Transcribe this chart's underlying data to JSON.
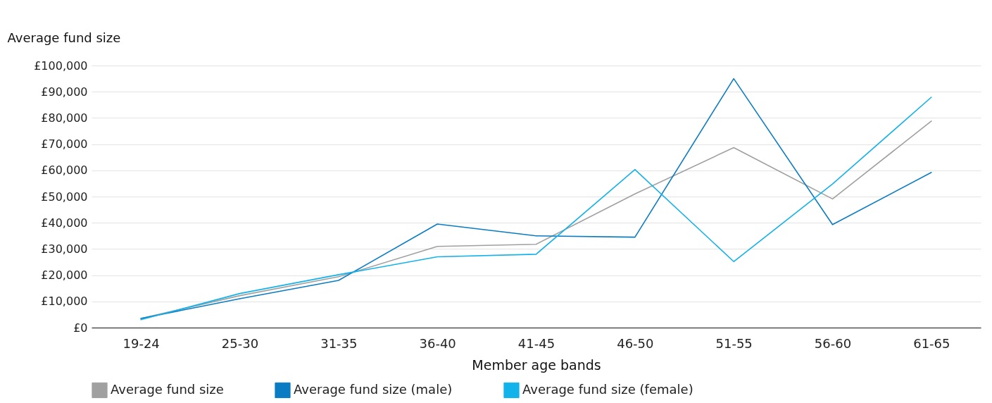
{
  "chart_data": {
    "type": "line",
    "ylabel": "Average fund size",
    "xlabel": "Member age bands",
    "categories": [
      "19-24",
      "25-30",
      "31-35",
      "36-40",
      "41-45",
      "46-50",
      "51-55",
      "56-60",
      "61-65"
    ],
    "series": [
      {
        "name": "Average fund size",
        "color": "#a0a0a0",
        "values": [
          3500,
          12200,
          19400,
          31000,
          31800,
          51000,
          68700,
          49100,
          78800
        ]
      },
      {
        "name": "Average fund size (male)",
        "color": "#0a7cc4",
        "values": [
          3500,
          11000,
          18000,
          39500,
          35000,
          34500,
          95000,
          39300,
          59200
        ]
      },
      {
        "name": "Average fund size (female)",
        "color": "#12b2ea",
        "values": [
          3000,
          13000,
          20200,
          27000,
          28000,
          60300,
          25200,
          54800,
          87900
        ]
      }
    ],
    "ylim": [
      0,
      100000
    ],
    "yticks": [
      {
        "value": 0,
        "label": "£0"
      },
      {
        "value": 10000,
        "label": "£10,000"
      },
      {
        "value": 20000,
        "label": "£20,000"
      },
      {
        "value": 30000,
        "label": "£30,000"
      },
      {
        "value": 40000,
        "label": "£40,000"
      },
      {
        "value": 50000,
        "label": "£50,000"
      },
      {
        "value": 60000,
        "label": "£60,000"
      },
      {
        "value": 70000,
        "label": "£70,000"
      },
      {
        "value": 80000,
        "label": "£80,000"
      },
      {
        "value": 90000,
        "label": "£90,000"
      },
      {
        "value": 100000,
        "label": "£100,000"
      }
    ],
    "grid": "y",
    "legend": "bottom",
    "marker": "none",
    "line_style": "solid"
  }
}
